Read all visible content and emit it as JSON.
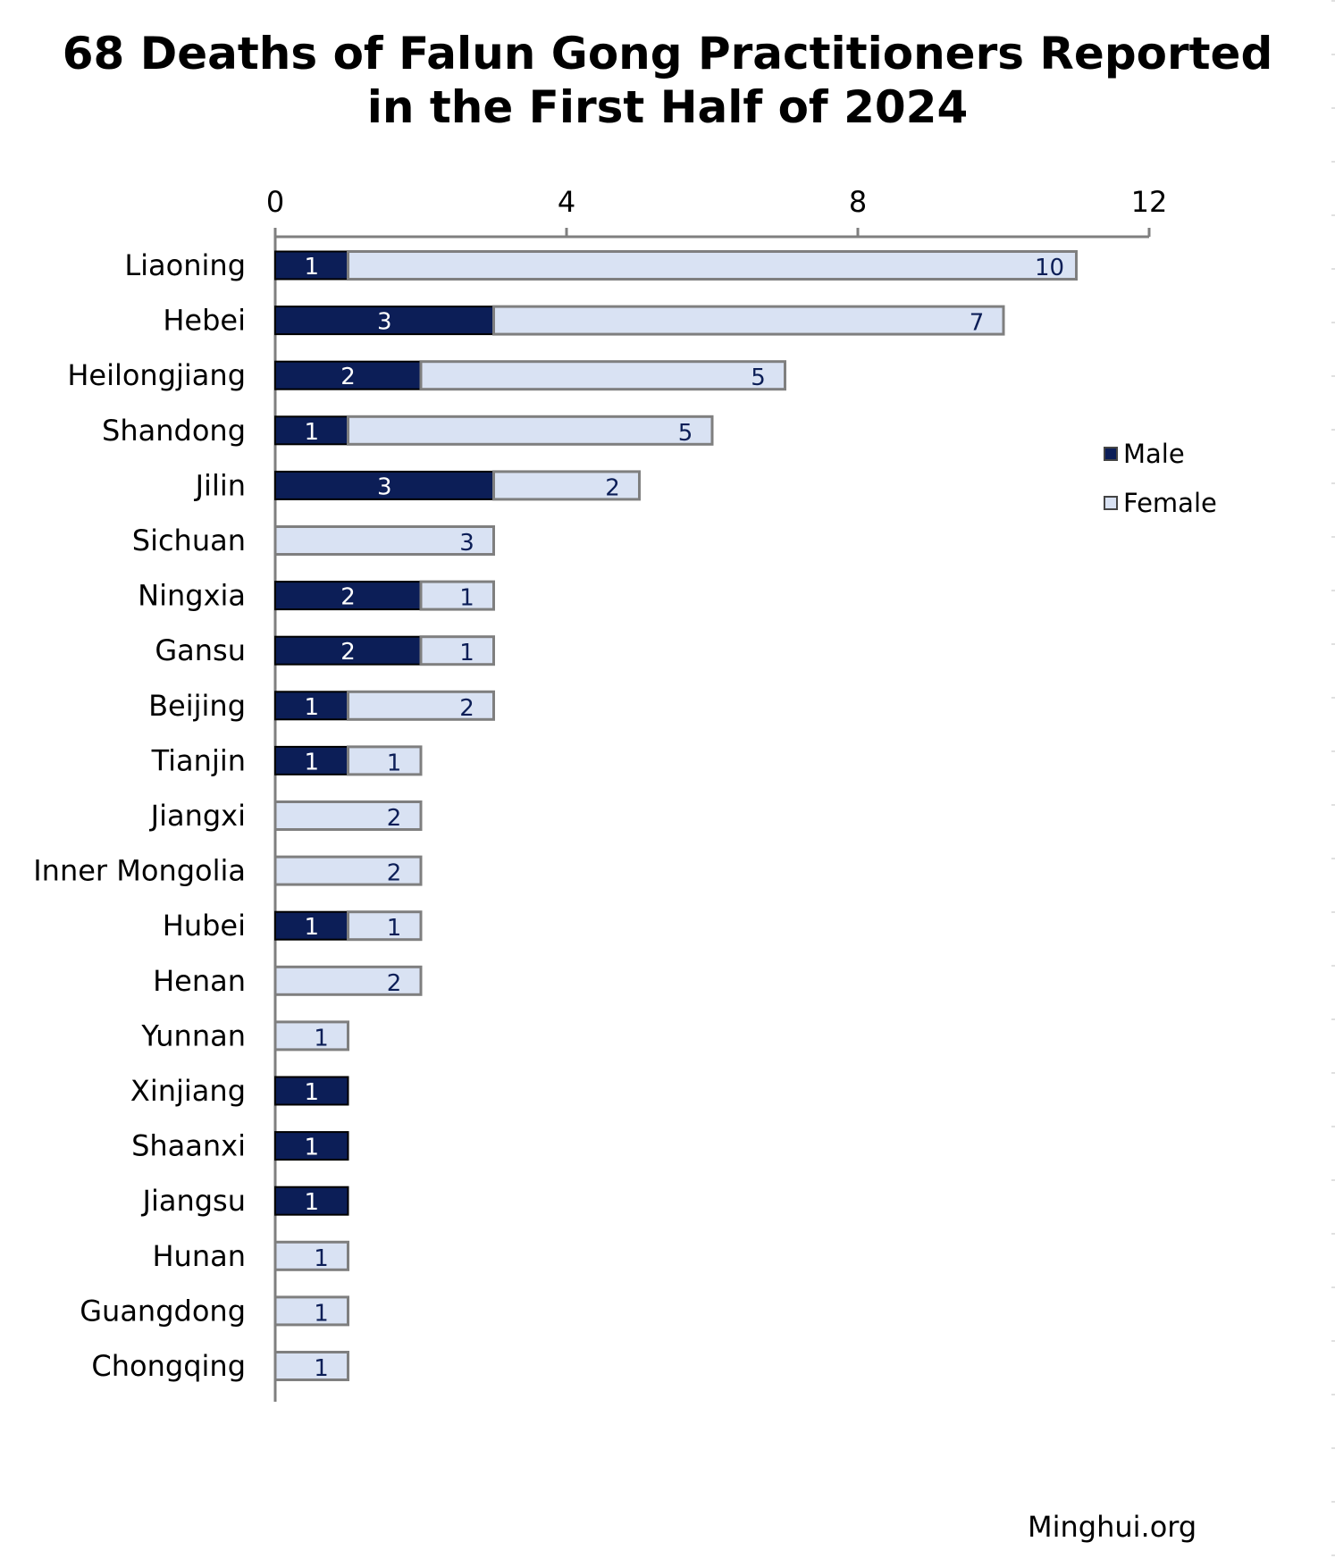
{
  "title_line1": "68 Deaths of Falun Gong Practitioners Reported",
  "title_line2": "in the First Half of 2024",
  "footer": "Minghui.org",
  "colors": {
    "male": "#0c1e57",
    "female": "#d9e2f3",
    "border": "#7f7f7f"
  },
  "legend": {
    "male": "Male",
    "female": "Female",
    "position": "right"
  },
  "chart_data": {
    "type": "bar",
    "orientation": "horizontal",
    "stacked": true,
    "categories": [
      "Liaoning",
      "Hebei",
      "Heilongjiang",
      "Shandong",
      "Jilin",
      "Sichuan",
      "Ningxia",
      "Gansu",
      "Beijing",
      "Tianjin",
      "Jiangxi",
      "Inner Mongolia",
      "Hubei",
      "Henan",
      "Yunnan",
      "Xinjiang",
      "Shaanxi",
      "Jiangsu",
      "Hunan",
      "Guangdong",
      "Chongqing"
    ],
    "series": [
      {
        "name": "Male",
        "values": [
          1,
          3,
          2,
          1,
          3,
          0,
          2,
          2,
          1,
          1,
          0,
          0,
          1,
          0,
          0,
          1,
          1,
          1,
          0,
          0,
          0
        ]
      },
      {
        "name": "Female",
        "values": [
          10,
          7,
          5,
          5,
          2,
          3,
          1,
          1,
          2,
          1,
          2,
          2,
          1,
          2,
          1,
          0,
          0,
          0,
          1,
          1,
          1
        ]
      }
    ],
    "xlim": [
      0,
      12
    ],
    "xticks": [
      "0",
      "4",
      "8",
      "12"
    ],
    "axis_position": "top",
    "grid": false,
    "data_labels": true
  }
}
